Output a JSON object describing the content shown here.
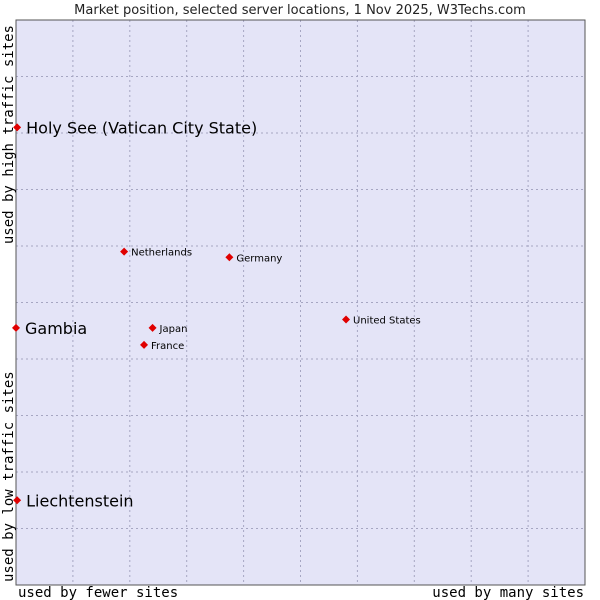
{
  "chart_data": {
    "type": "scatter",
    "title": "Market position, selected server locations, 1 Nov 2025, W3Techs.com",
    "xlabel_left": "used by fewer sites",
    "xlabel_right": "used by many sites",
    "ylabel_top": "used by high traffic sites",
    "ylabel_bottom": "used by low traffic sites",
    "xlim": [
      0,
      100
    ],
    "ylim": [
      0,
      100
    ],
    "grid": true,
    "points": [
      {
        "label": "Holy See (Vatican City State)",
        "x": 0.2,
        "y": 81,
        "emphasis": true
      },
      {
        "label": "Netherlands",
        "x": 19,
        "y": 59,
        "emphasis": false
      },
      {
        "label": "Germany",
        "x": 37.5,
        "y": 58,
        "emphasis": false
      },
      {
        "label": "United States",
        "x": 58,
        "y": 47,
        "emphasis": false
      },
      {
        "label": "Gambia",
        "x": 0,
        "y": 45.5,
        "emphasis": true
      },
      {
        "label": "Japan",
        "x": 24,
        "y": 45.5,
        "emphasis": false
      },
      {
        "label": "France",
        "x": 22.5,
        "y": 42.5,
        "emphasis": false
      },
      {
        "label": "Liechtenstein",
        "x": 0.2,
        "y": 15,
        "emphasis": true
      }
    ]
  },
  "colors": {
    "plot_background": "#e4e4f7",
    "grid": "#a6a6c2",
    "marker": "#e00000",
    "frame": "#555555"
  }
}
